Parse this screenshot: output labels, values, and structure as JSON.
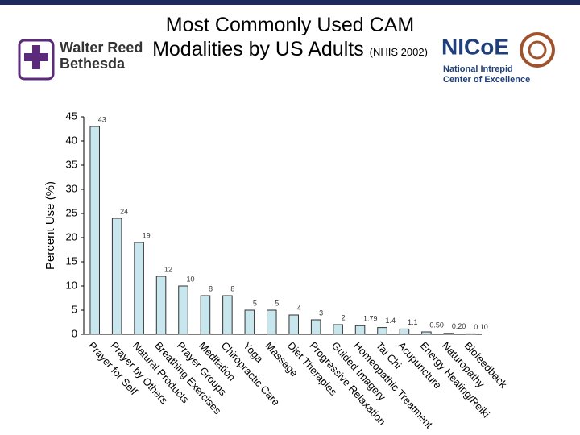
{
  "header": {
    "left_logo": {
      "line1": "Walter Reed",
      "line2": "Bethesda"
    },
    "right_logo": {
      "name": "NICoE",
      "line1": "National Intrepid",
      "line2": "Center of Excellence"
    }
  },
  "chart_data": {
    "type": "bar",
    "title": "Most Commonly Used CAM Modalities by US Adults",
    "source": "(NHIS 2002)",
    "y_label": "Percent Use (%)",
    "categories": [
      "Prayer for Self",
      "Prayer by Others",
      "Natural Products",
      "Breathing Exercises",
      "Prayer Groups",
      "Meditation",
      "Chiropractic Care",
      "Yoga",
      "Massage",
      "Diet Therapies",
      "Progressive Relaxation",
      "Guided Imagery",
      "Homeopathic Treatment",
      "Tai Chi",
      "Acupuncture",
      "Energy Healing/Reiki",
      "Naturopathy",
      "Biofeedback"
    ],
    "values": [
      43,
      24,
      19,
      12,
      10,
      8,
      8,
      5,
      5,
      4,
      3,
      2,
      1.79,
      1.4,
      1.1,
      0.5,
      0.2,
      0.1
    ],
    "value_labels": [
      "43",
      "24",
      "19",
      "12",
      "10",
      "8",
      "8",
      "5",
      "5",
      "4",
      "3",
      "2",
      "1.79",
      "1.4",
      "1.1",
      "0.50",
      "0.20",
      "0.10"
    ],
    "color": "#c8e6ee",
    "ylim": [
      0,
      45
    ],
    "yticks": [
      0,
      5,
      10,
      15,
      20,
      25,
      30,
      35,
      40,
      45
    ],
    "grid": false
  }
}
